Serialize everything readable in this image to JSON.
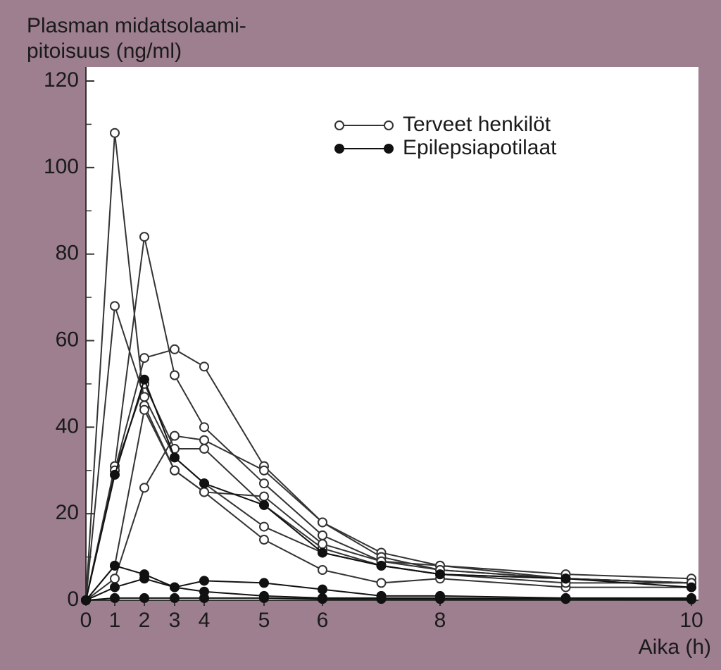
{
  "chart_data": {
    "type": "line",
    "y_label": [
      "Plasman midatsolaami-",
      "pitoisuus (ng/ml)"
    ],
    "x_label": "Aika (h)",
    "x": [
      0,
      1,
      2,
      3,
      4,
      5,
      6,
      7,
      8,
      9,
      10
    ],
    "xlim": [
      0,
      10
    ],
    "xticks": [
      0,
      1,
      2,
      3,
      4,
      5,
      6,
      8,
      10
    ],
    "ylim": [
      0,
      120
    ],
    "yticks": [
      0,
      20,
      40,
      60,
      80,
      100,
      120
    ],
    "yminorticks": [
      10,
      30,
      50,
      70,
      90,
      110
    ],
    "legend": "upper right",
    "series": [
      {
        "name": "Terveet henkilöt",
        "color": "#333333",
        "marker": "open",
        "lines": [
          [
            0,
            108,
            45,
            30,
            25,
            14,
            7,
            4,
            5,
            3,
            3
          ],
          [
            0,
            68,
            47,
            33,
            27,
            17,
            11,
            8,
            6,
            4,
            4
          ],
          [
            0,
            31,
            84,
            52,
            40,
            27,
            15,
            9,
            8,
            5,
            4
          ],
          [
            0,
            30,
            56,
            58,
            54,
            31,
            18,
            11,
            8,
            6,
            5
          ],
          [
            0,
            5,
            26,
            38,
            37,
            30,
            18,
            10,
            7,
            5,
            4
          ],
          [
            0,
            30,
            50,
            35,
            35,
            22,
            12,
            8,
            6,
            5,
            4
          ],
          [
            0,
            8,
            44,
            30,
            25,
            24,
            13,
            9,
            7,
            5,
            4
          ]
        ]
      },
      {
        "name": "Epilepsiapotilaat",
        "color": "#111111",
        "marker": "filled",
        "lines": [
          [
            0,
            8,
            6,
            3,
            2,
            1,
            0.5,
            0.5,
            0.5,
            0.3,
            0.3
          ],
          [
            0,
            3,
            5,
            3,
            4.5,
            4,
            2.5,
            1,
            1,
            0.5,
            0.5
          ],
          [
            0,
            0.5,
            0.5,
            0.5,
            0.5,
            0.5,
            0.3,
            0.3,
            0.3,
            0.3,
            0.2
          ],
          [
            0,
            29,
            51,
            33,
            27,
            22,
            11,
            8,
            6,
            5,
            3
          ]
        ]
      }
    ]
  }
}
